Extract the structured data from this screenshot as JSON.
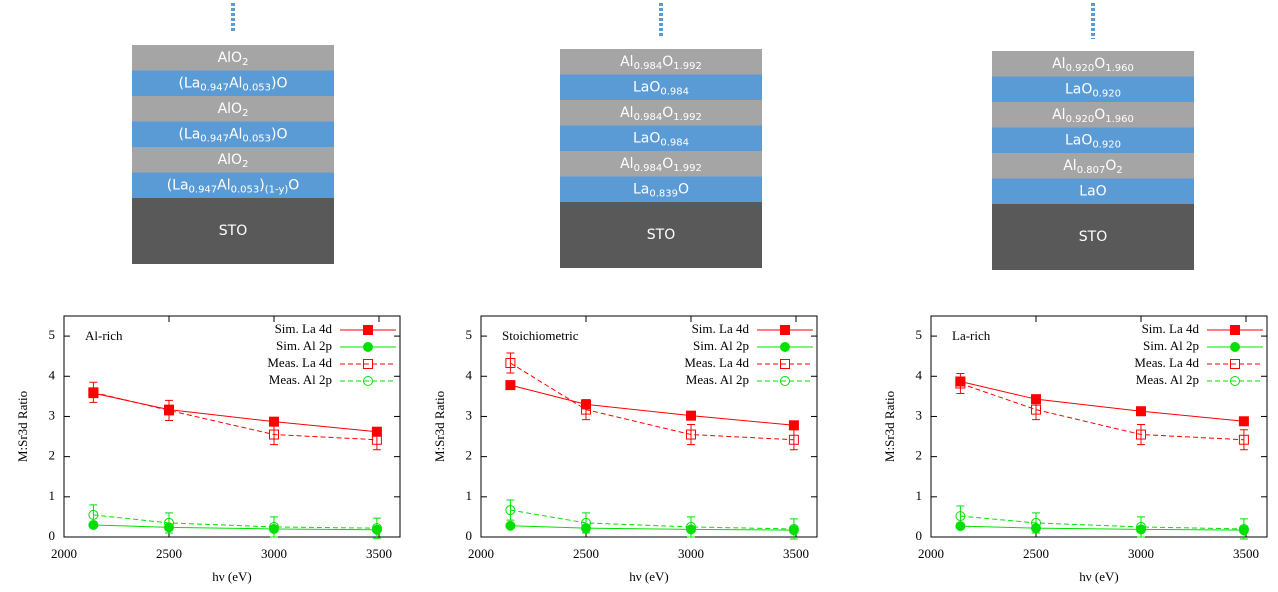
{
  "stacks": [
    {
      "layers": [
        [
          "AlO",
          "2"
        ],
        [
          "(La",
          "0.947",
          "Al",
          "0.053",
          ")O"
        ],
        [
          "AlO",
          "2"
        ],
        [
          "(La",
          "0.947",
          "Al",
          "0.053",
          ")O"
        ],
        [
          "AlO",
          "2"
        ],
        [
          "(La",
          "0.947",
          "Al",
          "0.053",
          ")",
          "(1-y)",
          "O"
        ],
        [
          "STO"
        ]
      ]
    },
    {
      "layers": [
        [
          "Al",
          "0.984",
          "O",
          "1.992"
        ],
        [
          "LaO",
          "0.984"
        ],
        [
          "Al",
          "0.984",
          "O",
          "1.992"
        ],
        [
          "LaO",
          "0.984"
        ],
        [
          "Al",
          "0.984",
          "O",
          "1.992"
        ],
        [
          "La",
          "0.839",
          "O"
        ],
        [
          "STO"
        ]
      ]
    },
    {
      "layers": [
        [
          "Al",
          "0.920",
          "O",
          "1.960"
        ],
        [
          "LaO",
          "0.920"
        ],
        [
          "Al",
          "0.920",
          "O",
          "1.960"
        ],
        [
          "LaO",
          "0.920"
        ],
        [
          "Al",
          "0.807",
          "O",
          "2"
        ],
        [
          "LaO"
        ],
        [
          "STO"
        ]
      ]
    }
  ],
  "chart_data": [
    {
      "type": "line",
      "title": "Al-rich",
      "x_label": "hν (eV)",
      "y_label": "M:Sr3d Ratio",
      "x": [
        2140,
        2500,
        3000,
        3490
      ],
      "xlim": [
        2000,
        3600
      ],
      "xticks": [
        2000,
        2500,
        3000,
        3500
      ],
      "ylim": [
        0,
        5.5
      ],
      "yticks": [
        0,
        1,
        2,
        3,
        4,
        5
      ],
      "legend": "top-right",
      "series": [
        {
          "name": "Sim. La 4d",
          "color": "#ff0000",
          "marker": "filled-square",
          "dashed": false,
          "values": [
            3.58,
            3.17,
            2.87,
            2.62
          ]
        },
        {
          "name": "Sim. Al 2p",
          "color": "#00e000",
          "marker": "filled-circle",
          "dashed": false,
          "values": [
            0.3,
            0.24,
            0.2,
            0.18
          ]
        },
        {
          "name": "Meas. La 4d",
          "color": "#ff0000",
          "marker": "open-square",
          "dashed": true,
          "values": [
            3.6,
            3.15,
            2.55,
            2.42
          ],
          "errors": [
            0.25,
            0.25,
            0.25,
            0.25
          ]
        },
        {
          "name": "Meas. Al 2p",
          "color": "#00e000",
          "marker": "open-circle",
          "dashed": true,
          "values": [
            0.55,
            0.35,
            0.25,
            0.22
          ],
          "errors": [
            0.25,
            0.25,
            0.25,
            0.25
          ]
        }
      ]
    },
    {
      "type": "line",
      "title": "Stoichiometric",
      "x_label": "hν (eV)",
      "y_label": "M:Sr3d Ratio",
      "x": [
        2140,
        2500,
        3000,
        3490
      ],
      "xlim": [
        2000,
        3600
      ],
      "xticks": [
        2000,
        2500,
        3000,
        3500
      ],
      "ylim": [
        0,
        5.5
      ],
      "yticks": [
        0,
        1,
        2,
        3,
        4,
        5
      ],
      "legend": "top-right",
      "series": [
        {
          "name": "Sim. La 4d",
          "color": "#ff0000",
          "marker": "filled-square",
          "dashed": false,
          "values": [
            3.78,
            3.3,
            3.02,
            2.78
          ]
        },
        {
          "name": "Sim. Al 2p",
          "color": "#00e000",
          "marker": "filled-circle",
          "dashed": false,
          "values": [
            0.28,
            0.22,
            0.19,
            0.17
          ]
        },
        {
          "name": "Meas. La 4d",
          "color": "#ff0000",
          "marker": "open-square",
          "dashed": true,
          "values": [
            4.33,
            3.17,
            2.55,
            2.42
          ],
          "errors": [
            0.25,
            0.25,
            0.25,
            0.25
          ]
        },
        {
          "name": "Meas. Al 2p",
          "color": "#00e000",
          "marker": "open-circle",
          "dashed": true,
          "values": [
            0.67,
            0.35,
            0.25,
            0.2
          ],
          "errors": [
            0.25,
            0.25,
            0.25,
            0.25
          ]
        }
      ]
    },
    {
      "type": "line",
      "title": "La-rich",
      "x_label": "hν (eV)",
      "y_label": "M:Sr3d Ratio",
      "x": [
        2140,
        2500,
        3000,
        3490
      ],
      "xlim": [
        2000,
        3600
      ],
      "xticks": [
        2000,
        2500,
        3000,
        3500
      ],
      "ylim": [
        0,
        5.5
      ],
      "yticks": [
        0,
        1,
        2,
        3,
        4,
        5
      ],
      "legend": "top-right",
      "series": [
        {
          "name": "Sim. La 4d",
          "color": "#ff0000",
          "marker": "filled-square",
          "dashed": false,
          "values": [
            3.87,
            3.43,
            3.13,
            2.88
          ]
        },
        {
          "name": "Sim. Al 2p",
          "color": "#00e000",
          "marker": "filled-circle",
          "dashed": false,
          "values": [
            0.27,
            0.22,
            0.19,
            0.17
          ]
        },
        {
          "name": "Meas. La 4d",
          "color": "#ff0000",
          "marker": "open-square",
          "dashed": true,
          "values": [
            3.82,
            3.17,
            2.55,
            2.42
          ],
          "errors": [
            0.25,
            0.25,
            0.25,
            0.25
          ]
        },
        {
          "name": "Meas. Al 2p",
          "color": "#00e000",
          "marker": "open-circle",
          "dashed": true,
          "values": [
            0.52,
            0.35,
            0.25,
            0.2
          ],
          "errors": [
            0.25,
            0.25,
            0.25,
            0.25
          ]
        }
      ]
    }
  ]
}
